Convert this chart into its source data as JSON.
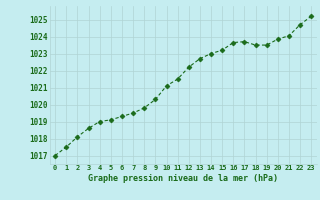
{
  "x": [
    0,
    1,
    2,
    3,
    4,
    5,
    6,
    7,
    8,
    9,
    10,
    11,
    12,
    13,
    14,
    15,
    16,
    17,
    18,
    19,
    20,
    21,
    22,
    23
  ],
  "y": [
    1017.0,
    1017.5,
    1018.1,
    1018.6,
    1019.0,
    1019.1,
    1019.3,
    1019.5,
    1019.8,
    1020.3,
    1021.1,
    1021.5,
    1022.2,
    1022.7,
    1023.0,
    1023.2,
    1023.65,
    1023.7,
    1023.5,
    1023.5,
    1023.85,
    1024.05,
    1024.7,
    1025.2
  ],
  "line_color": "#1a6b1a",
  "marker_color": "#1a6b1a",
  "bg_color": "#c5edf0",
  "grid_color": "#b0d4d4",
  "xlabel": "Graphe pression niveau de la mer (hPa)",
  "xlabel_color": "#1a6b1a",
  "tick_color": "#1a6b1a",
  "ylim_min": 1016.5,
  "ylim_max": 1025.8,
  "xlim_min": -0.5,
  "xlim_max": 23.5,
  "yticks": [
    1017,
    1018,
    1019,
    1020,
    1021,
    1022,
    1023,
    1024,
    1025
  ],
  "xticks": [
    0,
    1,
    2,
    3,
    4,
    5,
    6,
    7,
    8,
    9,
    10,
    11,
    12,
    13,
    14,
    15,
    16,
    17,
    18,
    19,
    20,
    21,
    22,
    23
  ]
}
